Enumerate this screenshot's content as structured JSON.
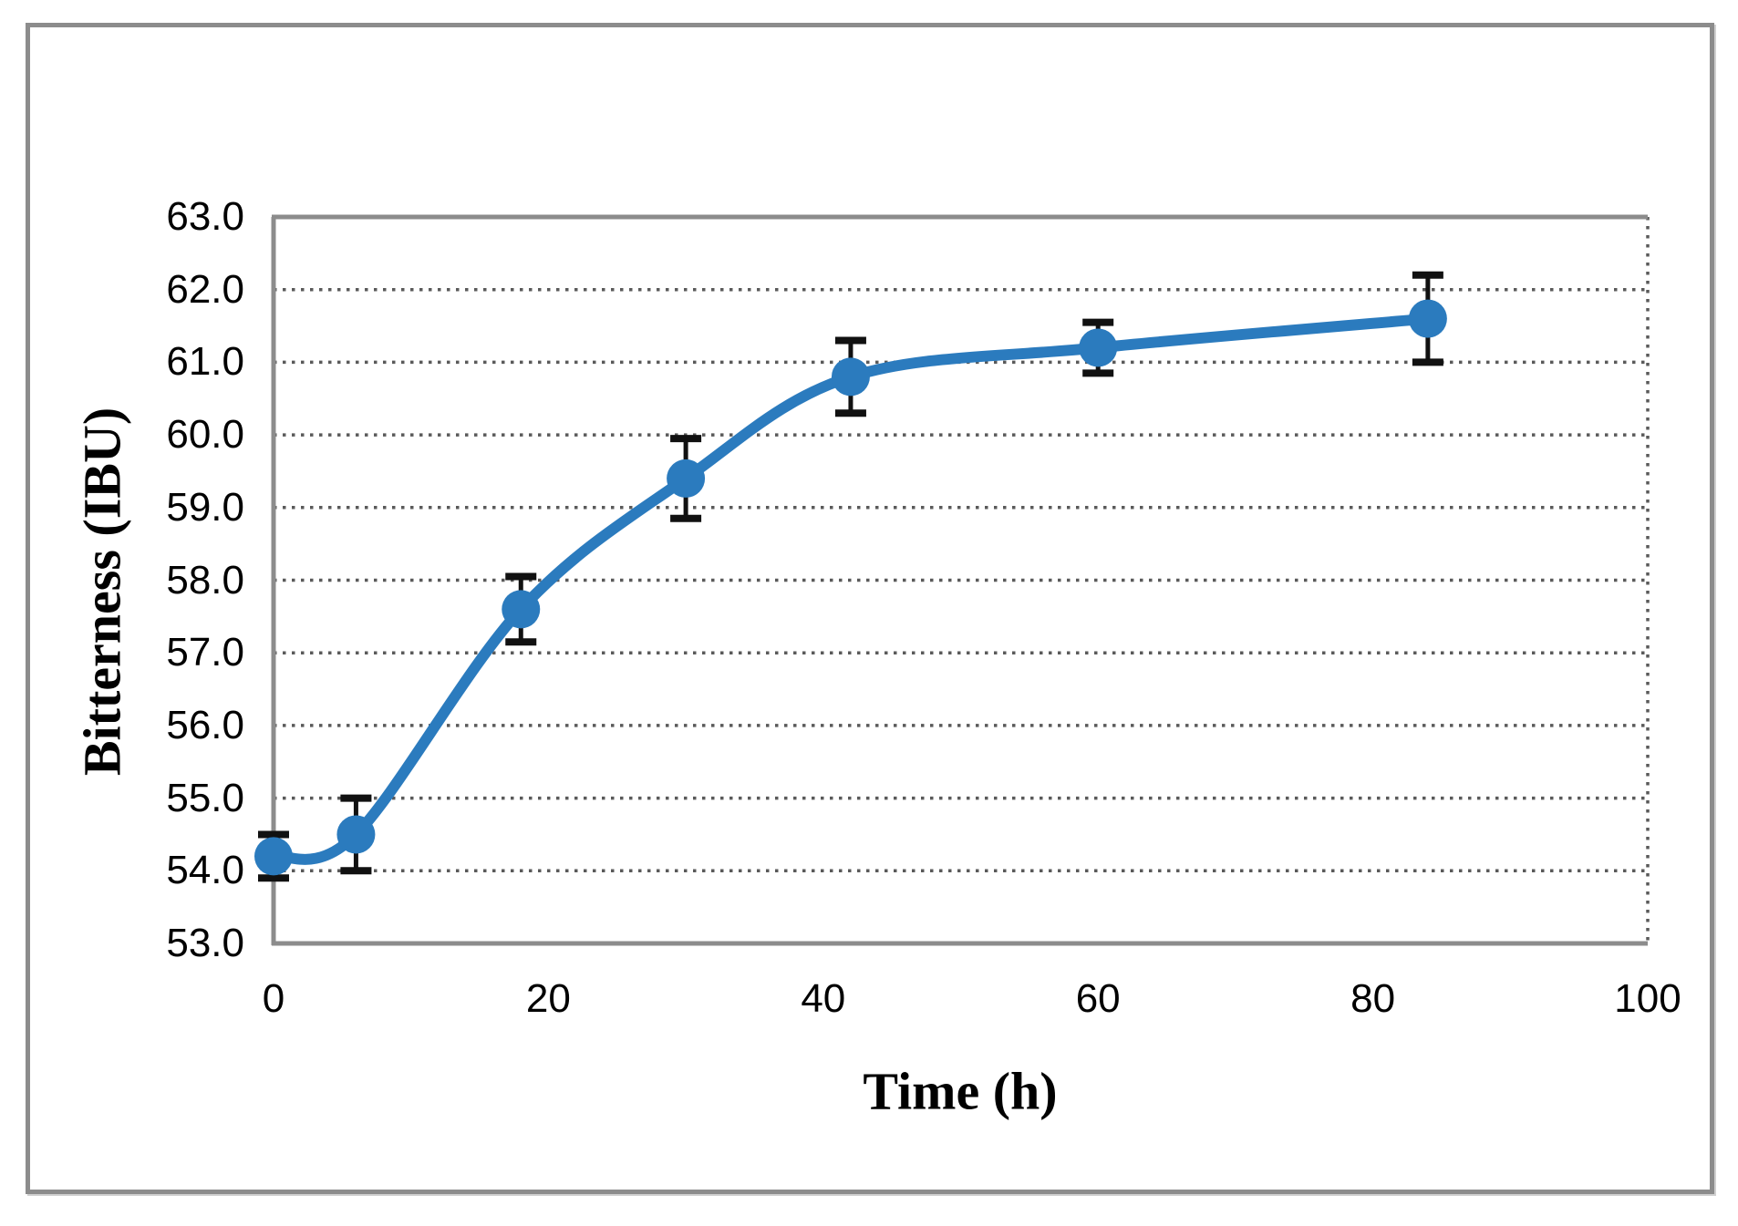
{
  "figure": {
    "background_color": "#ffffff",
    "border_color": "#8c8c8c"
  },
  "chart_data": {
    "type": "line",
    "title": "",
    "xlabel": "Time (h)",
    "ylabel": "Bitterness (IBU)",
    "x": [
      0,
      6,
      18,
      30,
      42,
      60,
      84
    ],
    "series": [
      {
        "name": "Bitterness",
        "values": [
          54.2,
          54.5,
          57.6,
          59.4,
          60.8,
          61.2,
          61.6
        ],
        "error_bars": [
          0.3,
          0.5,
          0.45,
          0.55,
          0.5,
          0.35,
          0.6
        ],
        "color": "#2B7BBE",
        "marker": "circle",
        "smooth": true
      }
    ],
    "xlim": [
      0,
      100
    ],
    "ylim": [
      53.0,
      63.0
    ],
    "x_ticks": [
      0,
      20,
      40,
      60,
      80,
      100
    ],
    "x_tick_labels": [
      "0",
      "20",
      "40",
      "60",
      "80",
      "100"
    ],
    "y_ticks": [
      53,
      54,
      55,
      56,
      57,
      58,
      59,
      60,
      61,
      62,
      63
    ],
    "y_tick_labels": [
      "53.0",
      "54.0",
      "55.0",
      "56.0",
      "57.0",
      "58.0",
      "59.0",
      "60.0",
      "61.0",
      "62.0",
      "63.0"
    ],
    "grid": "horizontal-dotted, right-border-dotted",
    "legend": "none",
    "gridline_color": "#5a5a5a",
    "axis_line_color": "#8c8c8c",
    "error_bar_color": "#111111"
  }
}
